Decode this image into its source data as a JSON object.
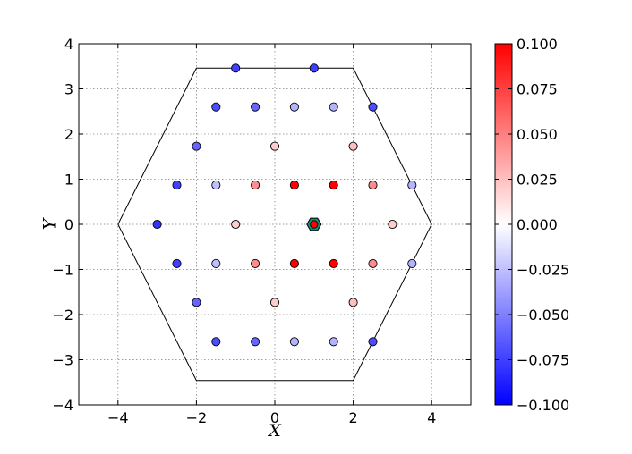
{
  "chart_data": {
    "type": "scatter",
    "xlabel": "X",
    "ylabel": "Y",
    "xlim": [
      -5,
      5
    ],
    "ylim": [
      -4,
      4
    ],
    "x_ticks": [
      "−4",
      "−2",
      "0",
      "2",
      "4"
    ],
    "y_ticks": [
      "−4",
      "−3",
      "−2",
      "−1",
      "0",
      "1",
      "2",
      "3",
      "4"
    ],
    "grid": true,
    "colormap": "bwr",
    "colorbar": {
      "range": [
        -0.1,
        0.1
      ],
      "ticks": [
        "0.100",
        "0.075",
        "0.050",
        "0.025",
        "0.000",
        "−0.025",
        "−0.050",
        "−0.075",
        "−0.100"
      ],
      "colors": {
        "high": "#ff0000",
        "mid": "#ffffff",
        "low": "#0000ff"
      }
    },
    "hexagon_outline": [
      [
        -4,
        0
      ],
      [
        -2,
        3.46
      ],
      [
        2,
        3.46
      ],
      [
        4,
        0
      ],
      [
        2,
        -3.46
      ],
      [
        -2,
        -3.46
      ]
    ],
    "center_marker": {
      "x": 1,
      "y": 0,
      "fill": "#ff0000",
      "edge": "#1a8a7a"
    },
    "points": [
      {
        "x": -1,
        "y": 3.46,
        "value": -0.075
      },
      {
        "x": 1,
        "y": 3.46,
        "value": -0.075
      },
      {
        "x": -1.5,
        "y": 2.6,
        "value": -0.07
      },
      {
        "x": -0.5,
        "y": 2.6,
        "value": -0.06
      },
      {
        "x": 0.5,
        "y": 2.6,
        "value": -0.03
      },
      {
        "x": 1.5,
        "y": 2.6,
        "value": -0.03
      },
      {
        "x": 2.5,
        "y": 2.6,
        "value": -0.07
      },
      {
        "x": -2,
        "y": 1.73,
        "value": -0.06
      },
      {
        "x": 0,
        "y": 1.73,
        "value": 0.02
      },
      {
        "x": 2,
        "y": 1.73,
        "value": 0.025
      },
      {
        "x": -2.5,
        "y": 0.87,
        "value": -0.075
      },
      {
        "x": -1.5,
        "y": 0.87,
        "value": -0.025
      },
      {
        "x": -0.5,
        "y": 0.87,
        "value": 0.045
      },
      {
        "x": 0.5,
        "y": 0.87,
        "value": 0.1
      },
      {
        "x": 1.5,
        "y": 0.87,
        "value": 0.1
      },
      {
        "x": 2.5,
        "y": 0.87,
        "value": 0.045
      },
      {
        "x": 3.5,
        "y": 0.87,
        "value": -0.03
      },
      {
        "x": -3,
        "y": 0,
        "value": -0.08
      },
      {
        "x": -1,
        "y": 0,
        "value": 0.02
      },
      {
        "x": 3,
        "y": 0,
        "value": 0.02
      },
      {
        "x": -2.5,
        "y": -0.87,
        "value": -0.075
      },
      {
        "x": -1.5,
        "y": -0.87,
        "value": -0.025
      },
      {
        "x": -0.5,
        "y": -0.87,
        "value": 0.045
      },
      {
        "x": 0.5,
        "y": -0.87,
        "value": 0.1
      },
      {
        "x": 1.5,
        "y": -0.87,
        "value": 0.1
      },
      {
        "x": 2.5,
        "y": -0.87,
        "value": 0.045
      },
      {
        "x": 3.5,
        "y": -0.87,
        "value": -0.03
      },
      {
        "x": -2,
        "y": -1.73,
        "value": -0.06
      },
      {
        "x": 0,
        "y": -1.73,
        "value": 0.02
      },
      {
        "x": 2,
        "y": -1.73,
        "value": 0.025
      },
      {
        "x": -1.5,
        "y": -2.6,
        "value": -0.07
      },
      {
        "x": -0.5,
        "y": -2.6,
        "value": -0.06
      },
      {
        "x": 0.5,
        "y": -2.6,
        "value": -0.03
      },
      {
        "x": 1.5,
        "y": -2.6,
        "value": -0.03
      },
      {
        "x": 2.5,
        "y": -2.6,
        "value": -0.07
      }
    ]
  }
}
